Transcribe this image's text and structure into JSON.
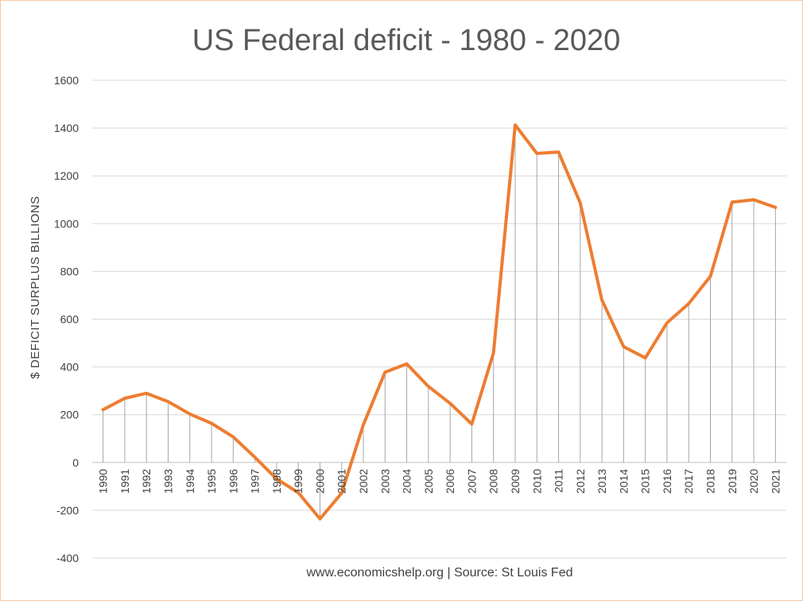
{
  "chart_data": {
    "type": "line",
    "title": "US Federal deficit - 1980 - 2020",
    "ylabel": "$ DEFICIT  SURPLUS    BILLIONS",
    "xlabel": "",
    "source": "www.economicshelp.org | Source: St Louis Fed",
    "ylim": [
      -400,
      1600
    ],
    "yticks": [
      -400,
      -200,
      0,
      200,
      400,
      600,
      800,
      1000,
      1200,
      1400,
      1600
    ],
    "grid": true,
    "drop_lines": true,
    "colors": {
      "line": "#ed7d31",
      "grid": "#d9d9d9",
      "drop": "#a6a6a6",
      "text": "#404040",
      "title": "#595959"
    },
    "categories": [
      "1990",
      "1991",
      "1992",
      "1993",
      "1994",
      "1995",
      "1996",
      "1997",
      "1998",
      "1999",
      "2000",
      "2001",
      "2002",
      "2003",
      "2004",
      "2005",
      "2006",
      "2007",
      "2008",
      "2009",
      "2010",
      "2011",
      "2012",
      "2013",
      "2014",
      "2015",
      "2016",
      "2017",
      "2018",
      "2019",
      "2020",
      "2021"
    ],
    "values": [
      221,
      269,
      290,
      255,
      203,
      164,
      107,
      22,
      -69,
      -126,
      -236,
      -128,
      158,
      378,
      413,
      318,
      248,
      161,
      459,
      1413,
      1294,
      1300,
      1087,
      680,
      485,
      438,
      585,
      665,
      779,
      1090,
      1100,
      1068
    ]
  }
}
